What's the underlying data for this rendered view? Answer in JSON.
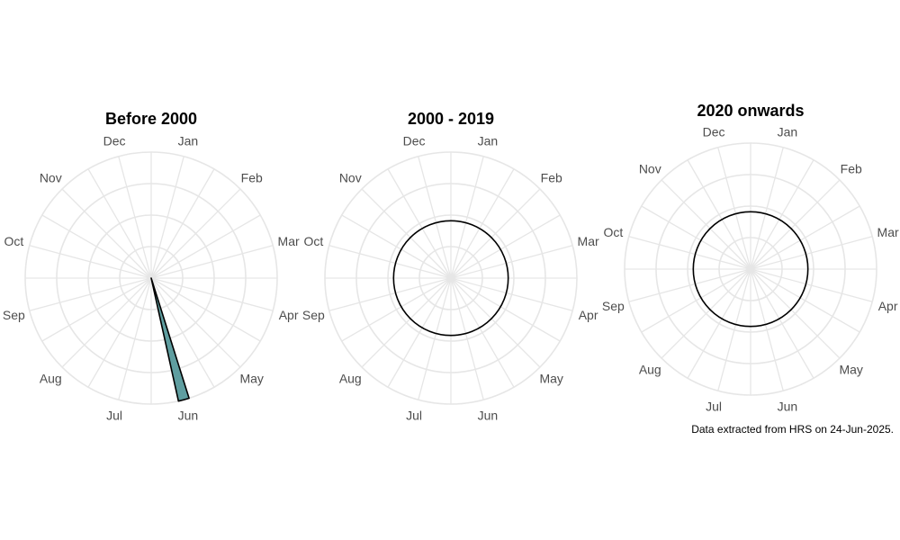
{
  "caption": "Data extracted from HRS on 24-Jun-2025.",
  "colors": {
    "fill": "#5f9ea0",
    "grid": "#e6e6e6",
    "label": "#4d4d4d",
    "outline": "#000000"
  },
  "chart_data": [
    {
      "type": "polar-bar",
      "title": "Before 2000",
      "categories": [
        "Jan",
        "Feb",
        "Mar",
        "Apr",
        "May",
        "Jun",
        "Jul",
        "Aug",
        "Sep",
        "Oct",
        "Nov",
        "Dec"
      ],
      "bars": [
        {
          "category": "Jun",
          "value": 1
        }
      ],
      "grid": true
    },
    {
      "type": "polar-bar",
      "title": "2000 - 2019",
      "categories": [
        "Jan",
        "Feb",
        "Mar",
        "Apr",
        "May",
        "Jun",
        "Jul",
        "Aug",
        "Sep",
        "Oct",
        "Nov",
        "Dec"
      ],
      "bars": [],
      "reference_circle": true,
      "grid": true
    },
    {
      "type": "polar-bar",
      "title": "2020 onwards",
      "categories": [
        "Jan",
        "Feb",
        "Mar",
        "Apr",
        "May",
        "Jun",
        "Jul",
        "Aug",
        "Sep",
        "Oct",
        "Nov",
        "Dec"
      ],
      "bars": [],
      "reference_circle": true,
      "grid": true
    }
  ]
}
